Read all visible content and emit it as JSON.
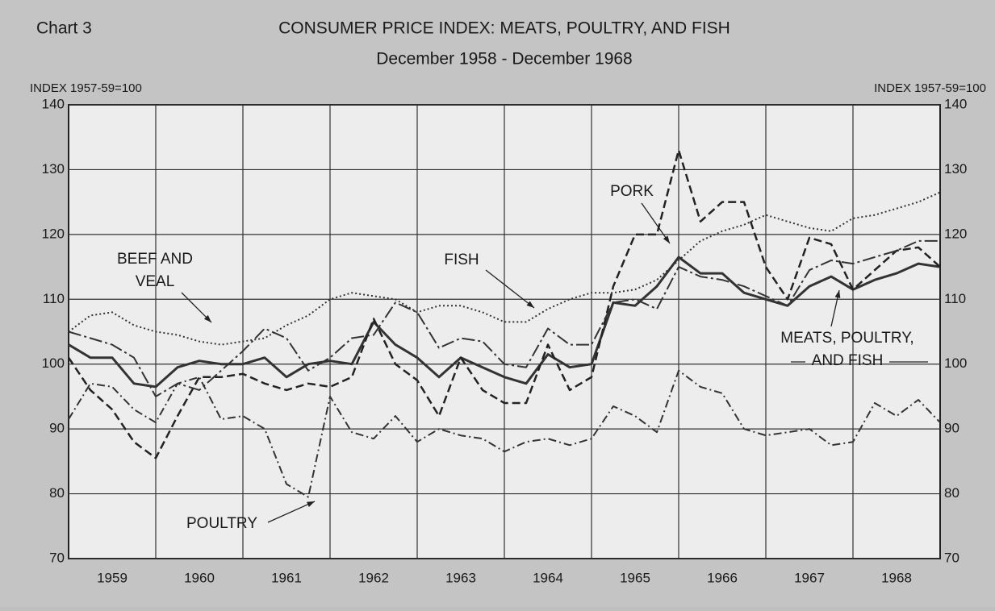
{
  "chart_data": {
    "type": "line",
    "chart_label": "Chart 3",
    "title": "CONSUMER PRICE INDEX: MEATS, POULTRY, AND FISH",
    "subtitle": "December 1958 - December 1968",
    "y_label": "INDEX 1957-59=100",
    "y2_label": "INDEX 1957-59=100",
    "x": [
      1959,
      1959.25,
      1959.5,
      1959.75,
      1960,
      1960.25,
      1960.5,
      1960.75,
      1961,
      1961.25,
      1961.5,
      1961.75,
      1962,
      1962.25,
      1962.5,
      1962.75,
      1963,
      1963.25,
      1963.5,
      1963.75,
      1964,
      1964.25,
      1964.5,
      1964.75,
      1965,
      1965.25,
      1965.5,
      1965.75,
      1966,
      1966.25,
      1966.5,
      1966.75,
      1967,
      1967.25,
      1967.5,
      1967.75,
      1968,
      1968.25,
      1968.5,
      1968.75,
      1969
    ],
    "xlim": [
      1959,
      1969
    ],
    "xticks": [
      {
        "value": 1959.5,
        "label": "1959"
      },
      {
        "value": 1960.5,
        "label": "1960"
      },
      {
        "value": 1961.5,
        "label": "1961"
      },
      {
        "value": 1962.5,
        "label": "1962"
      },
      {
        "value": 1963.5,
        "label": "1963"
      },
      {
        "value": 1964.5,
        "label": "1964"
      },
      {
        "value": 1965.5,
        "label": "1965"
      },
      {
        "value": 1966.5,
        "label": "1966"
      },
      {
        "value": 1967.5,
        "label": "1967"
      },
      {
        "value": 1968.5,
        "label": "1968"
      }
    ],
    "xgrid": [
      1960,
      1961,
      1962,
      1963,
      1964,
      1965,
      1966,
      1967,
      1968
    ],
    "ylim": [
      70,
      140
    ],
    "yticks": [
      70,
      80,
      90,
      100,
      110,
      120,
      130,
      140
    ],
    "y2lim": [
      70,
      140
    ],
    "y2ticks": [
      70,
      80,
      90,
      100,
      110,
      120,
      130,
      140
    ],
    "grid": true,
    "series": [
      {
        "name": "MEATS, POULTRY, AND FISH",
        "color": "#333333",
        "style": "solid",
        "width": 3,
        "values": [
          103,
          101,
          101,
          97,
          96.5,
          99.5,
          100.5,
          100,
          100,
          101,
          98,
          100,
          100.5,
          100,
          106.5,
          103,
          101,
          98,
          101,
          99.5,
          98,
          97,
          101.5,
          99.5,
          100,
          109.5,
          109,
          112,
          116.5,
          114,
          114,
          111,
          110,
          109,
          112,
          113.5,
          111.5,
          113,
          114,
          115.5,
          115
        ]
      },
      {
        "name": "PORK",
        "color": "#222222",
        "style": "dashed",
        "width": 2.5,
        "values": [
          101,
          96,
          93,
          88,
          85.5,
          92,
          98,
          98,
          98.5,
          97,
          96,
          97,
          96.5,
          98,
          107,
          100,
          97.5,
          92,
          101,
          96,
          94,
          94,
          103,
          96,
          98,
          112,
          120,
          120,
          133,
          122,
          125,
          125,
          115,
          110,
          119.5,
          118.5,
          111.5,
          114.5,
          117.5,
          118,
          115
        ]
      },
      {
        "name": "BEEF AND VEAL",
        "color": "#333333",
        "style": "longdashdot",
        "width": 2,
        "values": [
          105,
          104,
          103,
          101,
          95,
          97,
          96,
          99,
          102,
          105.5,
          104,
          99,
          101,
          104,
          104.5,
          109.5,
          108,
          102.5,
          104,
          103.5,
          100,
          99.5,
          105.5,
          103,
          103,
          109.5,
          110,
          108.5,
          115,
          113.5,
          113,
          112,
          110.5,
          109,
          114.5,
          116,
          115.5,
          116.5,
          117.5,
          119,
          119
        ]
      },
      {
        "name": "FISH",
        "color": "#333333",
        "style": "dotted",
        "width": 2,
        "values": [
          105,
          107.5,
          108,
          106,
          105,
          104.5,
          103.5,
          103,
          103.5,
          104,
          106,
          107.5,
          110,
          111,
          110.5,
          110,
          108,
          109,
          109,
          108,
          106.5,
          106.5,
          108.5,
          110,
          111,
          111,
          111.5,
          113,
          116,
          119,
          120.5,
          121.5,
          123,
          122,
          121,
          120.5,
          122.5,
          123,
          124,
          125,
          126.5
        ]
      },
      {
        "name": "POULTRY",
        "color": "#333333",
        "style": "dashdot",
        "width": 2,
        "values": [
          91.5,
          97,
          96.5,
          93,
          91,
          97,
          98,
          91.5,
          92,
          90,
          81.5,
          79.5,
          95,
          89.5,
          88.5,
          92,
          88,
          90,
          89,
          88.5,
          86.5,
          88,
          88.5,
          87.5,
          88.5,
          93.5,
          92,
          89.5,
          99,
          96.5,
          95.5,
          90,
          89,
          89.5,
          90,
          87.5,
          88,
          94,
          92,
          94.5,
          91
        ]
      }
    ],
    "annotations": [
      [
        "BEEF AND",
        "VEAL"
      ],
      [
        "FISH"
      ],
      [
        "PORK"
      ],
      [
        "MEATS, POULTRY,",
        "AND FISH"
      ],
      [
        "POULTRY"
      ]
    ]
  }
}
